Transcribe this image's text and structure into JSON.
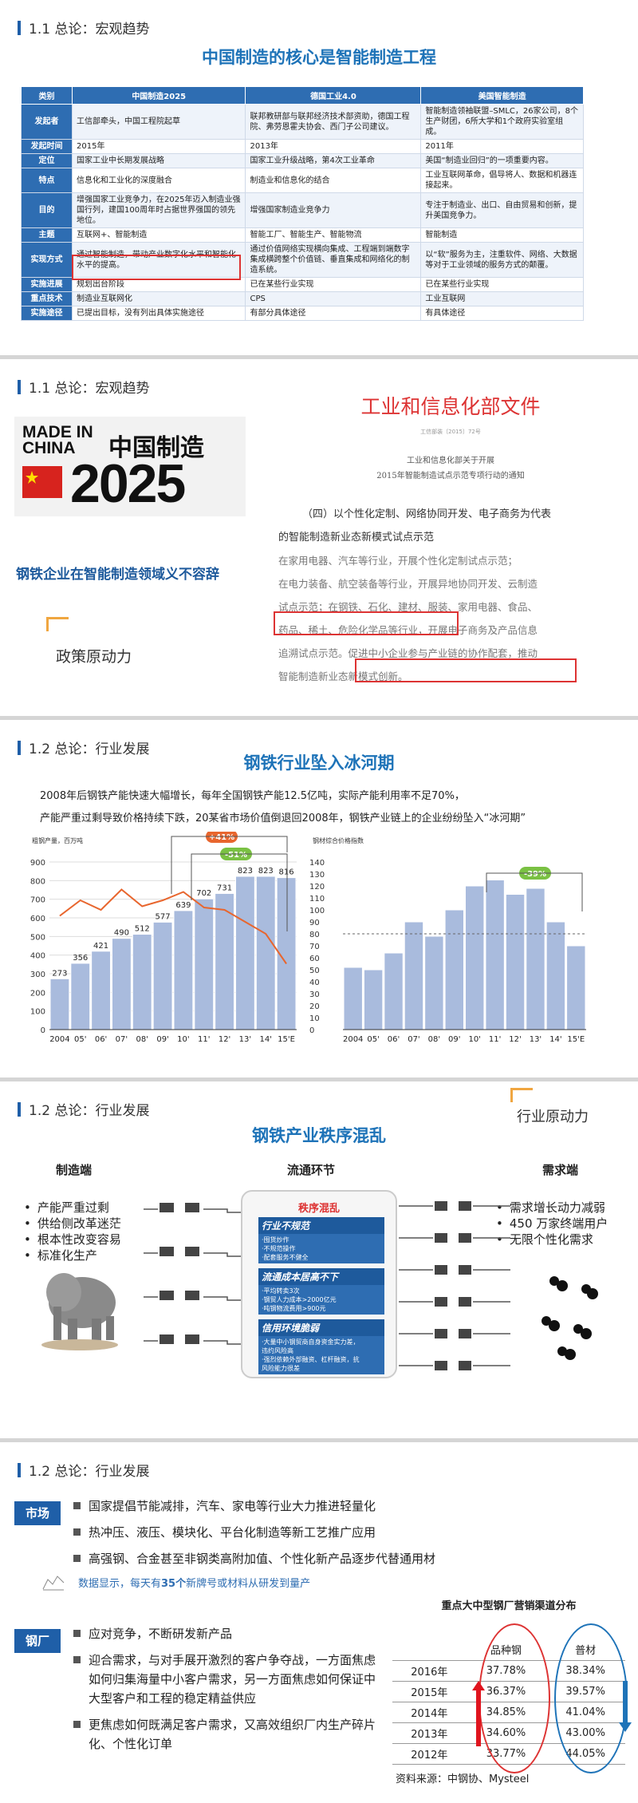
{
  "slide1": {
    "section": "1.1 总论：宏观趋势",
    "title": "中国制造的核心是智能制造工程",
    "headers": [
      "类别",
      "中国制造2025",
      "德国工业4.0",
      "美国智能制造"
    ],
    "rows": [
      [
        "发起者",
        "工信部牵头，中国工程院起草",
        "联邦教研部与联邦经济技术部资助，德国工程院、弗劳恩霍夫协会、西门子公司建议。",
        "智能制造领袖联盟–SMLC，26家公司，8个生产财团，6所大学和1个政府实验室组成。"
      ],
      [
        "发起时间",
        "2015年",
        "2013年",
        "2011年"
      ],
      [
        "定位",
        "国家工业中长期发展战略",
        "国家工业升级战略，第4次工业革命",
        "美国“制造业回归”的一项重要内容。"
      ],
      [
        "特点",
        "信息化和工业化的深度融合",
        "制造业和信息化的结合",
        "工业互联网革命，倡导将人、数据和机器连接起来。"
      ],
      [
        "目的",
        "增强国家工业竞争力，在2025年迈入制造业强国行列，建国100周年时占据世界强国的领先地位。",
        "增强国家制造业竞争力",
        "专注于制造业、出口、自由贸易和创新，提升美国竞争力。"
      ],
      [
        "主题",
        "互联网+、智能制造",
        "智能工厂、智能生产、智能物流",
        "智能制造"
      ],
      [
        "实现方式",
        "通过智能制造，带动产业数字化水平和智能化水平的提高。",
        "通过价值网络实现横向集成、工程端到端数字集成横跨整个价值链、垂直集成和网络化的制造系统。",
        "以“软”服务为主，注重软件、网络、大数据等对于工业领域的服务方式的颠覆。"
      ],
      [
        "实施进展",
        "规划出台阶段",
        "已在某些行业实现",
        "已在某些行业实现"
      ],
      [
        "重点技术",
        "制造业互联网化",
        "CPS",
        "工业互联网"
      ],
      [
        "实施途径",
        "已提出目标，没有列出具体实施途径",
        "有部分具体途径",
        "有具体途径"
      ]
    ]
  },
  "slide2": {
    "section": "1.1 总论：宏观趋势",
    "logo_made": "MADE IN",
    "logo_china": "CHINA",
    "logo_cn": "中国制造",
    "logo_year": "2025",
    "headline": "钢铁企业在智能制造领域义不容辞",
    "tag": "政策原动力",
    "doc_header": "工业和信息化部文件",
    "doc_no": "工信部装〔2015〕72号",
    "doc_sub1": "工业和信息化部关于开展",
    "doc_sub2": "2015年智能制造试点示范专项行动的通知",
    "doc_lines": [
      "（四）以个性化定制、网络协同开发、电子商务为代表",
      "的智能制造新业态新模式试点示范",
      "在家用电器、汽车等行业，开展个性化定制试点示范；",
      "在电力装备、航空装备等行业，开展异地协同开发、云制造",
      "试点示范；在钢铁、石化、建材、服装、家用电器、食品、",
      "药品、稀土、危险化学品等行业，开展电子商务及产品信息",
      "追溯试点示范。促进中小企业参与产业链的协作配套，推动",
      "智能制造新业态新模式创新。"
    ]
  },
  "slide3": {
    "section": "1.2 总论：行业发展",
    "title": "钢铁行业坠入冰河期",
    "line1": "2008年后钢铁产能快速大幅增长，每年全国钢铁产能12.5亿吨，实际产能利用率不足70%，",
    "line2": "产能严重过剩导致价格持续下跌，20某省市场价值倒退回2008年，钢铁产业链上的企业纷纷坠入“冰河期”",
    "left_axis_label": "粗钢产量，百万吨",
    "right_axis_label": "钢材综合价格指数",
    "badge_plus": "+41%",
    "badge_minus": "-51%",
    "badge_right": "-39%"
  },
  "chart_data": [
    {
      "type": "bar",
      "categories": [
        "2004",
        "05'",
        "06'",
        "07'",
        "08'",
        "09'",
        "10'",
        "11'",
        "12'",
        "13'",
        "14'",
        "15'E"
      ],
      "series": [
        {
          "values": [
            273,
            356,
            421,
            490,
            512,
            577,
            639,
            702,
            731,
            823,
            823,
            816
          ]
        }
      ],
      "line_series": {
        "values": [
          95,
          108,
          100,
          117,
          103,
          108,
          115,
          102,
          100,
          90,
          80,
          55
        ]
      },
      "ylim": [
        0,
        900
      ],
      "y2lim": [
        0,
        140
      ],
      "ticks_left": [
        "0",
        "100",
        "200",
        "300",
        "400",
        "500",
        "600",
        "700",
        "800",
        "900"
      ],
      "ticks_right": [
        "0",
        "10",
        "20",
        "30",
        "40",
        "50",
        "60",
        "70",
        "80",
        "90",
        "100",
        "110",
        "120",
        "130",
        "140"
      ]
    },
    {
      "type": "bar",
      "categories": [
        "2004",
        "05'",
        "06'",
        "07'",
        "08'",
        "09'",
        "10'",
        "11'",
        "12'",
        "13'",
        "14'",
        "15'E"
      ],
      "series": [
        {
          "values": [
            52,
            50,
            64,
            90,
            78,
            100,
            120,
            125,
            113,
            118,
            90,
            70
          ]
        }
      ],
      "ylim": [
        0,
        140
      ]
    }
  ],
  "slide4": {
    "section": "1.2 总论：行业发展",
    "title": "钢铁产业秩序混乱",
    "tag": "行业原动力",
    "col_left": "制造端",
    "col_mid": "流通环节",
    "col_right": "需求端",
    "left_bullets": [
      "产能严重过剩",
      "供给侧改革迷茫",
      "根本性改变容易",
      "标准化生产"
    ],
    "right_bullets": [
      "需求增长动力减弱",
      "450 万家终端用户",
      "无限个性化需求"
    ],
    "box_title": "秩序混乱",
    "groups": [
      {
        "h": "行业不规范",
        "items": [
          "·囤货炒作",
          "·不规范操作",
          "·配套服务不健全"
        ]
      },
      {
        "h": "流通成本居高不下",
        "items": [
          "·平均转卖3次",
          "·钢贸人力成本>2000亿元",
          "·吨钢物流费用>900元"
        ]
      },
      {
        "h": "信用环境脆弱",
        "items": [
          "·大量中小钢贸商自身资金实力差，",
          "违约风险高",
          "·强烈依赖外部融资、杠杆融资，抗",
          "风险能力很差"
        ]
      }
    ]
  },
  "slide5": {
    "section": "1.2 总论：行业发展",
    "tag_market": "市场",
    "tag_mill": "钢厂",
    "market_bullets": [
      "国家提倡节能减排，汽车、家电等行业大力推进轻量化",
      "热冲压、液压、模块化、平台化制造等新工艺推广应用",
      "高强钢、合金甚至非钢类高附加值、个性化新产品逐步代替通用材"
    ],
    "data_note_pre": "数据显示，每天有",
    "data_note_num": "35个",
    "data_note_post": "新牌号或材料从研发到量产",
    "mill_bullets": [
      "应对竞争，不断研发新产品",
      "迎合需求，与对手展开激烈的客户争夺战，一方面焦虑如何归集海量中小客户需求，另一方面焦虑如何保证中大型客户和工程的稳定精益供应",
      "更焦虑如何既满足客户需求，又高效组织厂内生产碎片化、个性化订单"
    ],
    "table_title": "重点大中型钢厂营销渠道分布",
    "col1": "品种钢",
    "col2": "普材",
    "rows": [
      [
        "2016年",
        "37.78%",
        "38.34%"
      ],
      [
        "2015年",
        "36.37%",
        "39.57%"
      ],
      [
        "2014年",
        "34.85%",
        "41.04%"
      ],
      [
        "2013年",
        "34.60%",
        "43.00%"
      ],
      [
        "2012年",
        "33.77%",
        "44.05%"
      ]
    ],
    "source": "资料来源：中钢协、Mysteel"
  }
}
